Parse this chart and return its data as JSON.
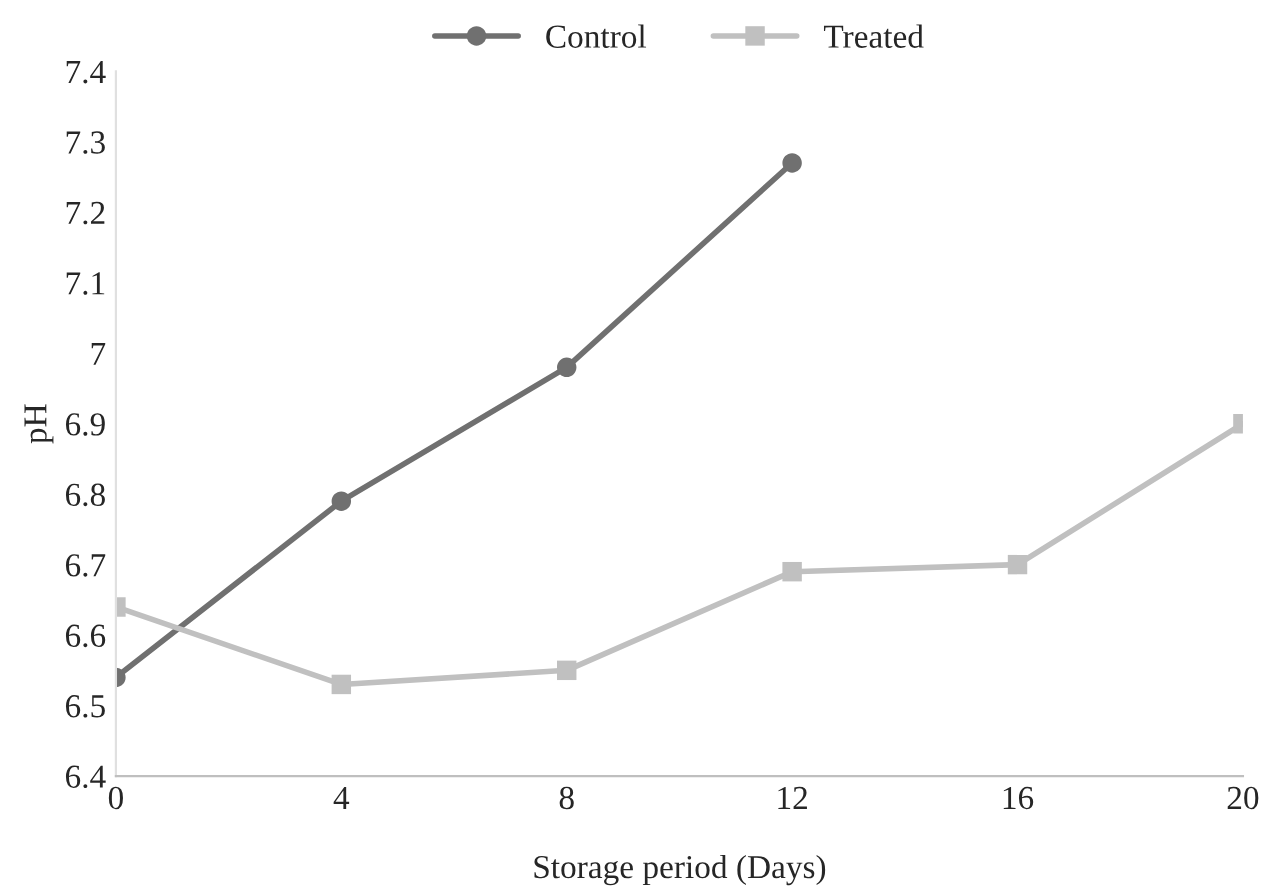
{
  "chart_data": {
    "type": "line",
    "xlabel": "Storage period (Days)",
    "ylabel": "pH",
    "xlim": [
      0,
      20
    ],
    "xticks": [
      0,
      4,
      8,
      12,
      16,
      20
    ],
    "ylim": [
      6.4,
      7.4
    ],
    "yticks": [
      6.4,
      6.5,
      6.6,
      6.7,
      6.8,
      6.9,
      7,
      7.1,
      7.2,
      7.3,
      7.4
    ],
    "grid": false,
    "legend": "top",
    "line_style": "solid",
    "series": [
      {
        "name": "Control",
        "color": "#707070",
        "marker": "circle",
        "x": [
          0,
          4,
          8,
          12
        ],
        "values": [
          6.54,
          6.79,
          6.98,
          7.27
        ]
      },
      {
        "name": "Treated",
        "color": "#c0c0c0",
        "marker": "square",
        "x": [
          0,
          4,
          8,
          12,
          16,
          20
        ],
        "values": [
          6.64,
          6.53,
          6.55,
          6.69,
          6.7,
          6.9
        ]
      }
    ]
  }
}
